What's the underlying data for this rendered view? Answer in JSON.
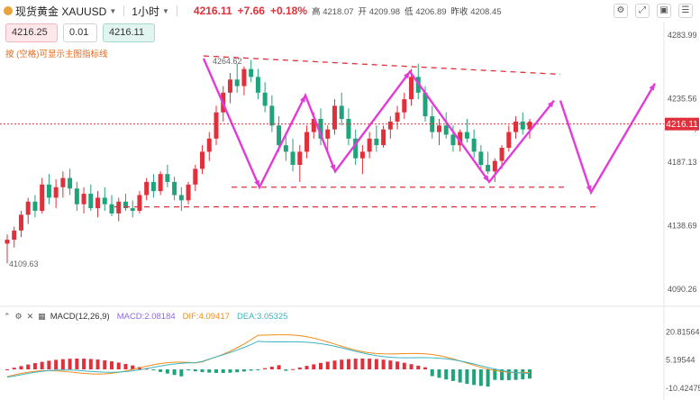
{
  "header": {
    "symbol": "现货黄金 XAUUSD",
    "timeframe": "1小时",
    "price": "4216.11",
    "change": "+7.66",
    "change_pct": "+0.18%",
    "ohlc": [
      {
        "label": "高",
        "value": "4218.07"
      },
      {
        "label": "开",
        "value": "4209.98"
      },
      {
        "label": "低",
        "value": "4206.89"
      },
      {
        "label": "昨收",
        "value": "4208.45"
      }
    ],
    "toolbar_icons": [
      "chart-settings-icon",
      "fullscreen-icon",
      "screenshot-icon",
      "settings-icon"
    ]
  },
  "order": {
    "bid": "4216.25",
    "lot": "0.01",
    "ask": "4216.11",
    "hint": "按 (空格)可显示主图指标线"
  },
  "chart_data": {
    "type": "candlestick",
    "y_axis_labels": [
      "4283.99",
      "4235.56",
      "4187.13",
      "4138.69",
      "4090.26"
    ],
    "ylim": [
      4080,
      4290
    ],
    "current_price_label": "4216.11",
    "high_annotation": "4264.62",
    "low_annotation": "4109.63",
    "x_axis_labels": [
      "",
      ""
    ],
    "colors": {
      "up": "#e0303b",
      "down": "#1fa37a",
      "forecast": "#e23bd8",
      "trendline": "#e0303b"
    },
    "candles": [
      [
        4125,
        4132,
        4110,
        4128
      ],
      [
        4128,
        4138,
        4122,
        4135
      ],
      [
        4135,
        4150,
        4130,
        4147
      ],
      [
        4147,
        4160,
        4140,
        4157
      ],
      [
        4157,
        4162,
        4145,
        4150
      ],
      [
        4150,
        4175,
        4148,
        4170
      ],
      [
        4170,
        4178,
        4155,
        4160
      ],
      [
        4160,
        4174,
        4152,
        4168
      ],
      [
        4168,
        4180,
        4160,
        4175
      ],
      [
        4175,
        4182,
        4162,
        4167
      ],
      [
        4167,
        4172,
        4150,
        4155
      ],
      [
        4155,
        4168,
        4148,
        4163
      ],
      [
        4163,
        4170,
        4150,
        4152
      ],
      [
        4152,
        4165,
        4145,
        4160
      ],
      [
        4160,
        4168,
        4150,
        4155
      ],
      [
        4155,
        4162,
        4146,
        4148
      ],
      [
        4148,
        4160,
        4142,
        4157
      ],
      [
        4157,
        4163,
        4150,
        4152
      ],
      [
        4152,
        4158,
        4145,
        4150
      ],
      [
        4150,
        4165,
        4148,
        4162
      ],
      [
        4162,
        4175,
        4158,
        4172
      ],
      [
        4172,
        4178,
        4160,
        4165
      ],
      [
        4165,
        4180,
        4162,
        4178
      ],
      [
        4178,
        4185,
        4168,
        4172
      ],
      [
        4172,
        4176,
        4158,
        4162
      ],
      [
        4162,
        4168,
        4150,
        4158
      ],
      [
        4158,
        4172,
        4155,
        4170
      ],
      [
        4170,
        4185,
        4165,
        4182
      ],
      [
        4182,
        4200,
        4178,
        4195
      ],
      [
        4195,
        4210,
        4188,
        4205
      ],
      [
        4205,
        4230,
        4200,
        4225
      ],
      [
        4225,
        4245,
        4218,
        4240
      ],
      [
        4240,
        4255,
        4232,
        4250
      ],
      [
        4250,
        4262,
        4240,
        4245
      ],
      [
        4245,
        4260,
        4238,
        4258
      ],
      [
        4258,
        4265,
        4248,
        4252
      ],
      [
        4252,
        4258,
        4235,
        4240
      ],
      [
        4240,
        4248,
        4225,
        4230
      ],
      [
        4230,
        4238,
        4210,
        4215
      ],
      [
        4215,
        4222,
        4195,
        4200
      ],
      [
        4200,
        4210,
        4188,
        4195
      ],
      [
        4195,
        4205,
        4180,
        4185
      ],
      [
        4185,
        4200,
        4172,
        4195
      ],
      [
        4195,
        4215,
        4190,
        4210
      ],
      [
        4210,
        4225,
        4205,
        4220
      ],
      [
        4220,
        4228,
        4200,
        4205
      ],
      [
        4205,
        4215,
        4195,
        4212
      ],
      [
        4212,
        4235,
        4208,
        4230
      ],
      [
        4230,
        4240,
        4215,
        4220
      ],
      [
        4220,
        4228,
        4200,
        4205
      ],
      [
        4205,
        4212,
        4185,
        4190
      ],
      [
        4190,
        4200,
        4178,
        4195
      ],
      [
        4195,
        4210,
        4190,
        4205
      ],
      [
        4205,
        4215,
        4195,
        4200
      ],
      [
        4200,
        4215,
        4198,
        4212
      ],
      [
        4212,
        4222,
        4205,
        4218
      ],
      [
        4218,
        4230,
        4212,
        4225
      ],
      [
        4225,
        4240,
        4220,
        4235
      ],
      [
        4235,
        4258,
        4230,
        4252
      ],
      [
        4252,
        4262,
        4235,
        4240
      ],
      [
        4240,
        4245,
        4218,
        4222
      ],
      [
        4222,
        4230,
        4205,
        4210
      ],
      [
        4210,
        4220,
        4200,
        4215
      ],
      [
        4215,
        4225,
        4205,
        4208
      ],
      [
        4208,
        4215,
        4195,
        4200
      ],
      [
        4200,
        4212,
        4195,
        4210
      ],
      [
        4210,
        4220,
        4202,
        4205
      ],
      [
        4205,
        4212,
        4190,
        4195
      ],
      [
        4195,
        4200,
        4180,
        4185
      ],
      [
        4185,
        4195,
        4178,
        4180
      ],
      [
        4180,
        4190,
        4172,
        4188
      ],
      [
        4188,
        4200,
        4182,
        4198
      ],
      [
        4198,
        4215,
        4195,
        4210
      ],
      [
        4210,
        4222,
        4205,
        4218
      ],
      [
        4218,
        4225,
        4208,
        4212
      ],
      [
        4212,
        4220,
        4205,
        4216
      ]
    ]
  },
  "indicator": {
    "name": "MACD(12,26,9)",
    "macd": "MACD:2.08184",
    "dif": "DIF:4.09417",
    "dea": "DEA:3.05325",
    "axis_labels": [
      "20.81564",
      "5.19544",
      "-10.42475"
    ]
  }
}
